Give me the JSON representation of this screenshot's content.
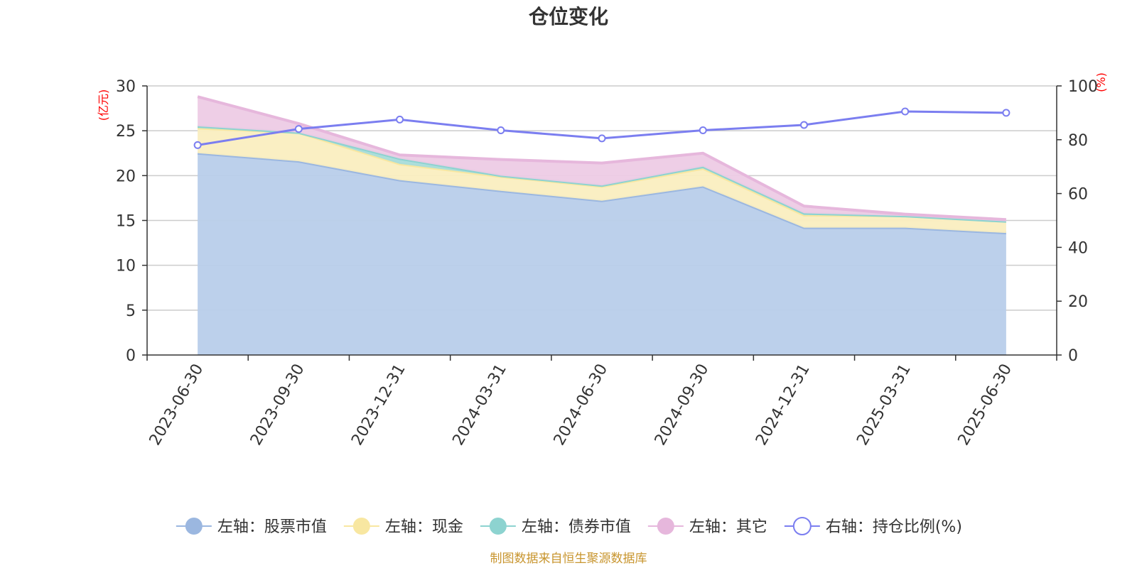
{
  "chart_data": {
    "type": "area",
    "title": "仓位变化",
    "categories": [
      "2023-06-30",
      "2023-09-30",
      "2023-12-31",
      "2024-03-31",
      "2024-06-30",
      "2024-09-30",
      "2024-12-31",
      "2025-03-31",
      "2025-06-30"
    ],
    "left_axis": {
      "unit": "(亿元)",
      "ylim": [
        0,
        30
      ],
      "ticks": [
        "0",
        "5",
        "10",
        "15",
        "20",
        "25",
        "30"
      ]
    },
    "right_axis": {
      "unit": "(%)",
      "ylim": [
        0,
        100
      ],
      "ticks": [
        "0",
        "20",
        "40",
        "60",
        "80",
        "100"
      ]
    },
    "stacked_series": [
      {
        "name": "左轴：股票市值",
        "color": "#9bb7e0",
        "fill": "#b8cdea",
        "values": [
          22.5,
          21.6,
          19.5,
          18.3,
          17.2,
          18.8,
          14.2,
          14.2,
          13.6
        ]
      },
      {
        "name": "左轴：现金",
        "color": "#f8e7a1",
        "fill": "#faeec0",
        "values": [
          2.8,
          3.2,
          1.8,
          1.6,
          1.6,
          2.0,
          1.4,
          1.3,
          1.3
        ]
      },
      {
        "name": "左轴：债券市值",
        "color": "#8dd3d0",
        "fill": "#a8dcda",
        "values": [
          0.2,
          0.0,
          0.6,
          0.1,
          0.1,
          0.2,
          0.2,
          0.0,
          0.0
        ]
      },
      {
        "name": "左轴：其它",
        "color": "#e6b7dc",
        "fill": "#edcbe5",
        "values": [
          3.3,
          1.0,
          0.4,
          1.8,
          2.5,
          1.5,
          0.8,
          0.2,
          0.2
        ]
      }
    ],
    "line_series": {
      "name": "右轴：持仓比例(%)",
      "color": "#7b7ef0",
      "values": [
        78,
        84,
        87.5,
        83.5,
        80.5,
        83.5,
        85.5,
        90.5,
        90
      ]
    },
    "grid": true,
    "legend": "bottom",
    "source": "制图数据来自恒生聚源数据库"
  }
}
